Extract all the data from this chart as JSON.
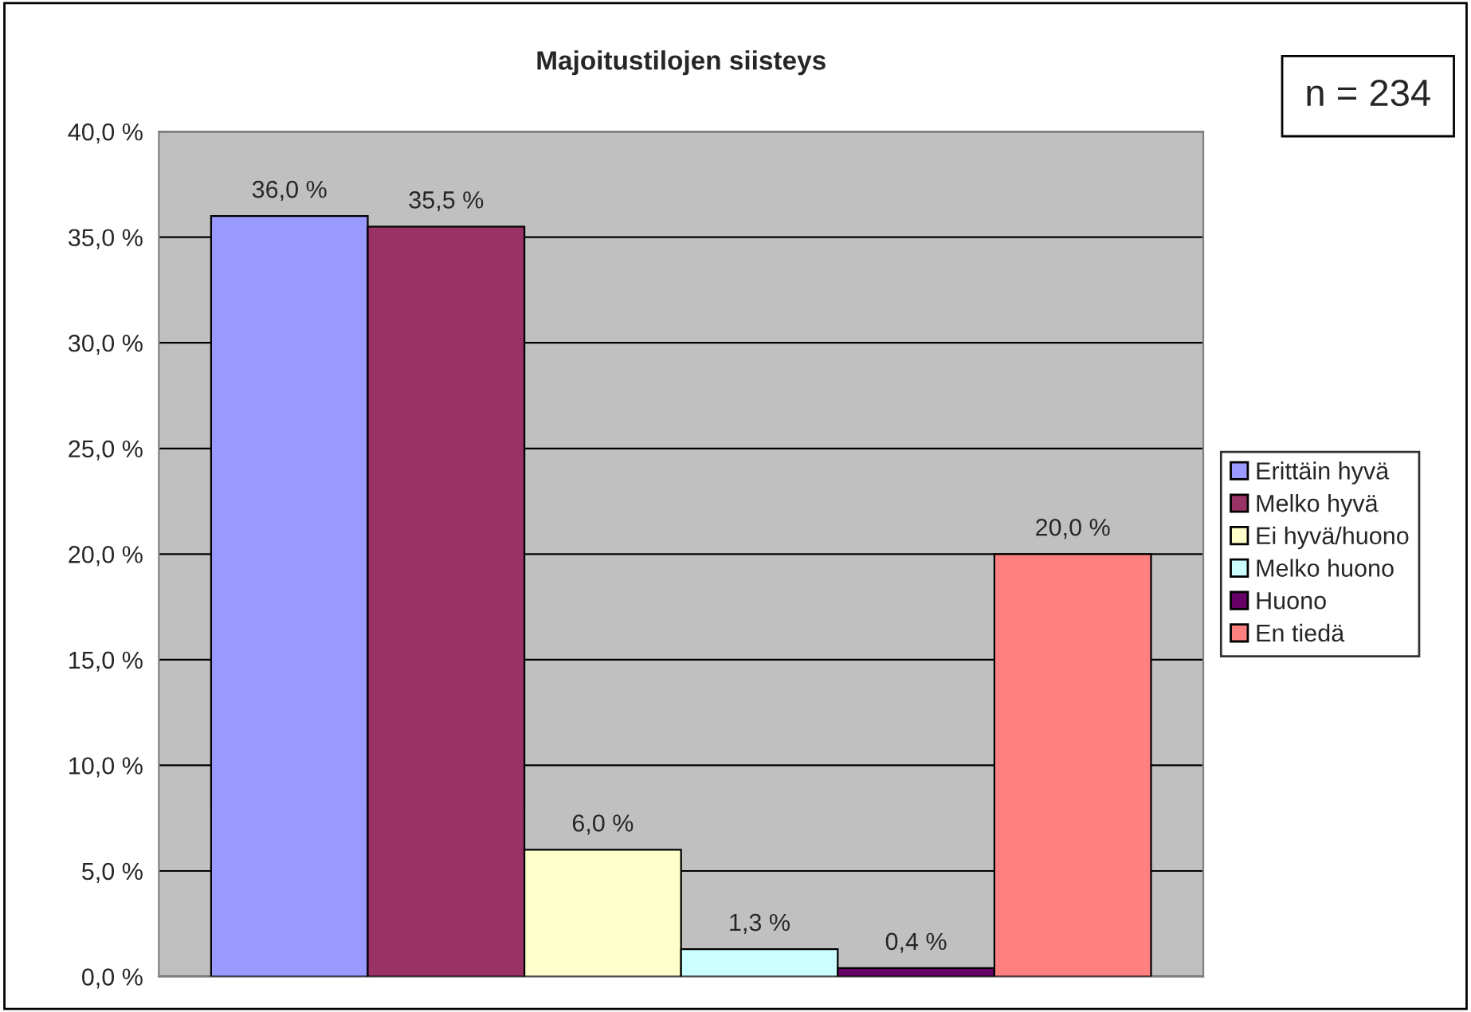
{
  "chart_data": {
    "type": "bar",
    "title": "Majoitustilojen siisteys",
    "annotations": [
      "n = 234"
    ],
    "categories": [
      null
    ],
    "series": [
      {
        "name": "Erittäin hyvä",
        "color": "#9999ff",
        "values": [
          36.0
        ],
        "value_labels": [
          "36,0 %"
        ]
      },
      {
        "name": "Melko hyvä",
        "color": "#993366",
        "values": [
          35.5
        ],
        "value_labels": [
          "35,5 %"
        ]
      },
      {
        "name": "Ei hyvä/huono",
        "color": "#ffffcc",
        "values": [
          6.0
        ],
        "value_labels": [
          "6,0 %"
        ]
      },
      {
        "name": "Melko huono",
        "color": "#ccffff",
        "values": [
          1.3
        ],
        "value_labels": [
          "1,3 %"
        ]
      },
      {
        "name": "Huono",
        "color": "#660066",
        "values": [
          0.4
        ],
        "value_labels": [
          "0,4 %"
        ]
      },
      {
        "name": "En tiedä",
        "color": "#ff8080",
        "values": [
          20.0
        ],
        "value_labels": [
          "20,0 %"
        ]
      }
    ],
    "ylim": [
      0,
      40
    ],
    "yticks": [
      {
        "value": 0,
        "label": "0,0 %"
      },
      {
        "value": 5,
        "label": "5,0 %"
      },
      {
        "value": 10,
        "label": "10,0 %"
      },
      {
        "value": 15,
        "label": "15,0 %"
      },
      {
        "value": 20,
        "label": "20,0 %"
      },
      {
        "value": 25,
        "label": "25,0 %"
      },
      {
        "value": 30,
        "label": "30,0 %"
      },
      {
        "value": 35,
        "label": "35,0 %"
      },
      {
        "value": 40,
        "label": "40,0 %"
      }
    ],
    "grid": "y",
    "legend": "right"
  }
}
